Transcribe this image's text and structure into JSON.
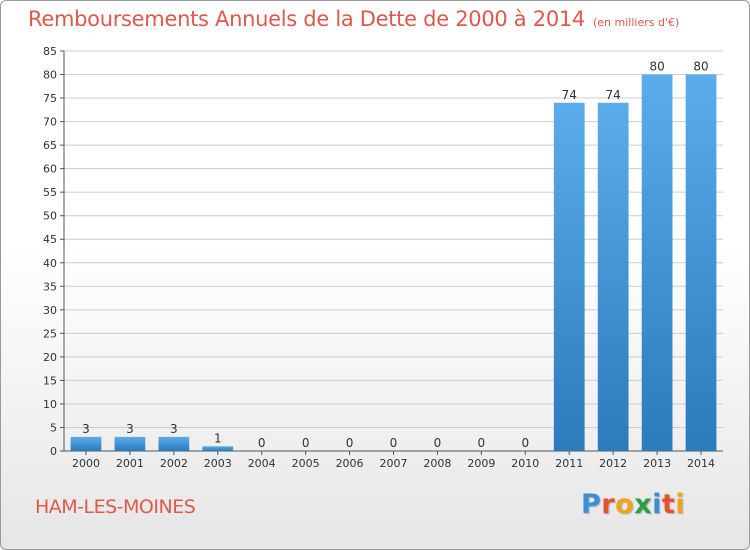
{
  "title": "Remboursements Annuels de la Dette de 2000 à 2014",
  "unit": "(en milliers d'€)",
  "commune": "HAM-LES-MOINES",
  "brand": {
    "letters": [
      {
        "ch": "P",
        "color": "#3a8fd6"
      },
      {
        "ch": "r",
        "color": "#e5532a"
      },
      {
        "ch": "o",
        "color": "#f0a31c"
      },
      {
        "ch": "x",
        "color": "#2f9e3f"
      },
      {
        "ch": "i",
        "color": "#3a8fd6"
      },
      {
        "ch": "t",
        "color": "#e5532a"
      },
      {
        "ch": "i",
        "color": "#f0a31c"
      }
    ]
  },
  "colors": {
    "title": "#e0584a",
    "bar_top": "#5aacea",
    "bar_bottom": "#2a7bbd",
    "grid": "#cccccc"
  },
  "chart_data": {
    "type": "bar",
    "categories": [
      "2000",
      "2001",
      "2002",
      "2003",
      "2004",
      "2005",
      "2006",
      "2007",
      "2008",
      "2009",
      "2010",
      "2011",
      "2012",
      "2013",
      "2014"
    ],
    "values": [
      3,
      3,
      3,
      1,
      0,
      0,
      0,
      0,
      0,
      0,
      0,
      74,
      74,
      80,
      80
    ],
    "title": "Remboursements Annuels de la Dette de 2000 à 2014",
    "xlabel": "",
    "ylabel": "",
    "ylim": [
      0,
      85
    ],
    "yticks": [
      0,
      5,
      10,
      15,
      20,
      25,
      30,
      35,
      40,
      45,
      50,
      55,
      60,
      65,
      70,
      75,
      80,
      85
    ],
    "grid": true,
    "legend": "none"
  }
}
